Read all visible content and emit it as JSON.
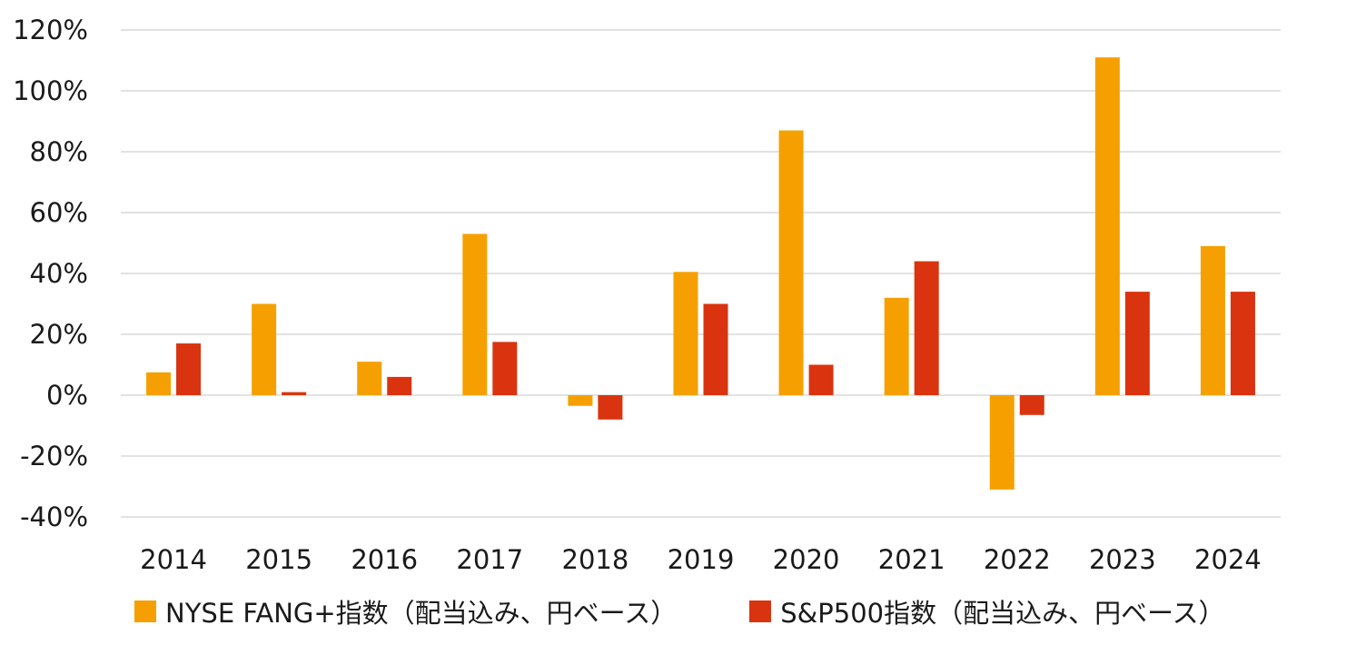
{
  "chart_data": {
    "type": "bar",
    "title": "",
    "xlabel": "",
    "ylabel": "",
    "categories": [
      "2014",
      "2015",
      "2016",
      "2017",
      "2018",
      "2019",
      "2020",
      "2021",
      "2022",
      "2023",
      "2024"
    ],
    "series": [
      {
        "name": "NYSE FANG+指数（配当込み、円ベース）",
        "color": "#f5a000",
        "values": [
          7.5,
          30,
          11,
          53,
          -3.5,
          40.5,
          87,
          32,
          -31,
          111,
          49
        ]
      },
      {
        "name": "S&P500指数（配当込み、円ベース）",
        "color": "#d9340f",
        "values": [
          17,
          1,
          6,
          17.5,
          -8,
          30,
          10,
          44,
          -6.5,
          34,
          34
        ]
      }
    ],
    "ylim": [
      -40,
      120
    ],
    "yticks": [
      -40,
      -20,
      0,
      20,
      40,
      60,
      80,
      100,
      120
    ],
    "ytick_labels": [
      "-40%",
      "-20%",
      "0%",
      "20%",
      "40%",
      "60%",
      "80%",
      "100%",
      "120%"
    ],
    "grid": true,
    "legend_position": "bottom"
  }
}
